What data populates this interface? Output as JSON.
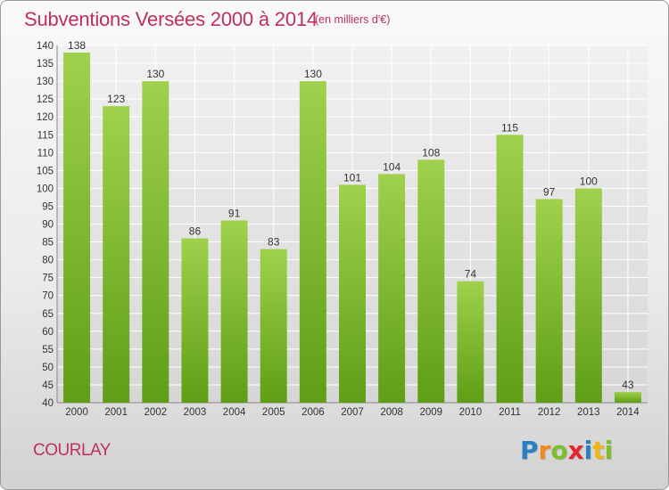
{
  "title": "Subventions Versées 2000 à 2014",
  "subtitle": "(en milliers d'€)",
  "commune": "COURLAY",
  "brand": {
    "letters": [
      "P",
      "r",
      "o",
      "x",
      "i",
      "t",
      "i"
    ],
    "colors": [
      "#2a7fc4",
      "#f08a1c",
      "#7bbf2a",
      "#e4262c",
      "#2a7fc4",
      "#f2b417",
      "#7bbf2a"
    ]
  },
  "colors": {
    "accent": "#c0305a",
    "bar_top": "#9fd14c",
    "bar_bottom": "#5f9e16"
  },
  "chart_data": {
    "type": "bar",
    "categories": [
      "2000",
      "2001",
      "2002",
      "2003",
      "2004",
      "2005",
      "2006",
      "2007",
      "2008",
      "2009",
      "2010",
      "2011",
      "2012",
      "2013",
      "2014"
    ],
    "values": [
      138,
      123,
      130,
      86,
      91,
      83,
      130,
      101,
      104,
      108,
      74,
      115,
      97,
      100,
      43
    ],
    "ylim": [
      40,
      140
    ],
    "yticks": [
      40,
      45,
      50,
      55,
      60,
      65,
      70,
      75,
      80,
      85,
      90,
      95,
      100,
      105,
      110,
      115,
      120,
      125,
      130,
      135,
      140
    ],
    "grid": true,
    "legend": "none",
    "xlabel": "",
    "ylabel": ""
  }
}
